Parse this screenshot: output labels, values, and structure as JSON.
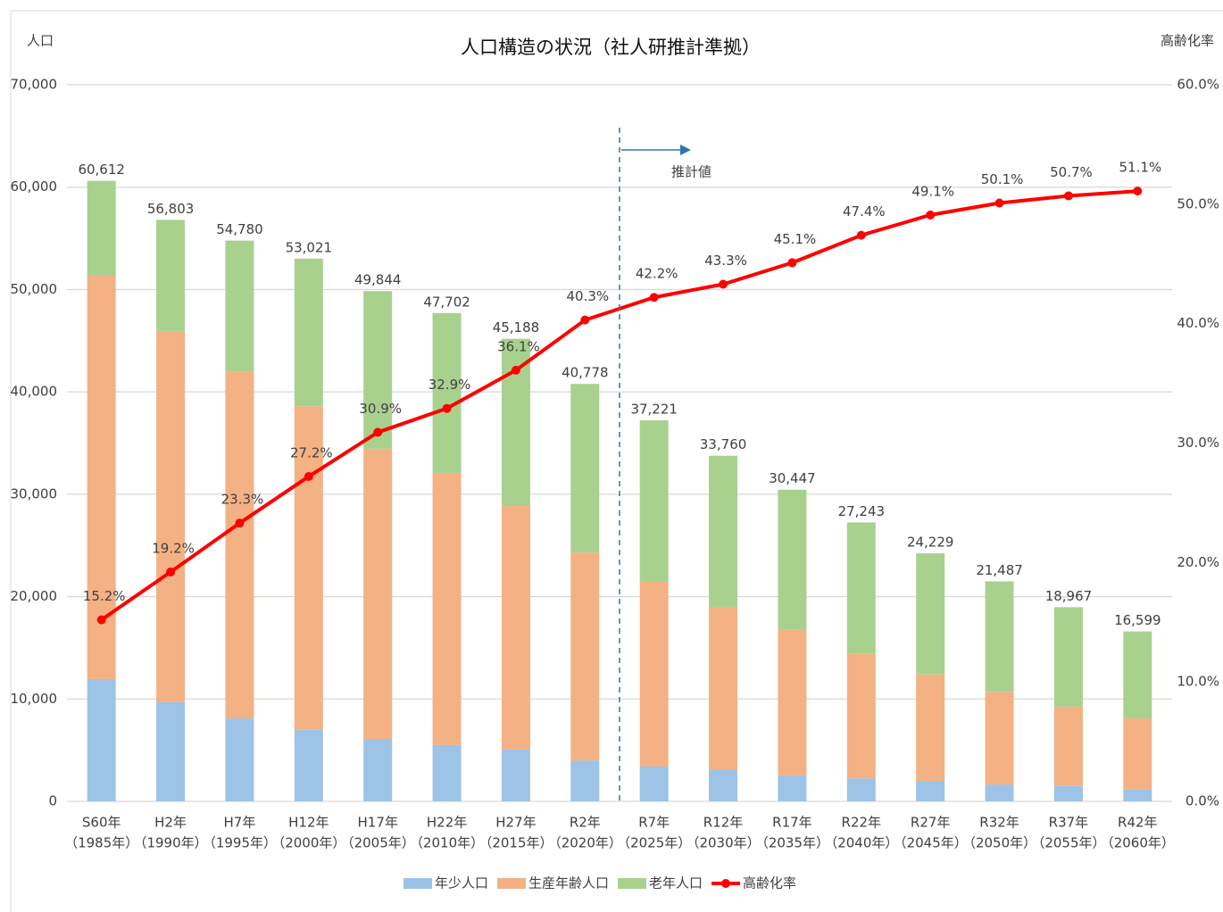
{
  "chart_data": {
    "type": "bar",
    "title": "人口構造の状況（社人研推計準拠）",
    "y_label": "人口",
    "y2_label": "高齢化率",
    "categories": [
      [
        "S60年",
        "（1985年）"
      ],
      [
        "H2年",
        "（1990年）"
      ],
      [
        "H7年",
        "（1995年）"
      ],
      [
        "H12年",
        "（2000年）"
      ],
      [
        "H17年",
        "（2005年）"
      ],
      [
        "H22年",
        "（2010年）"
      ],
      [
        "H27年",
        "（2015年）"
      ],
      [
        "R2年",
        "（2020年）"
      ],
      [
        "R7年",
        "（2025年）"
      ],
      [
        "R12年",
        "（2030年）"
      ],
      [
        "R17年",
        "（2035年）"
      ],
      [
        "R22年",
        "（2040年）"
      ],
      [
        "R27年",
        "（2045年）"
      ],
      [
        "R32年",
        "（2050年）"
      ],
      [
        "R37年",
        "（2055年）"
      ],
      [
        "R42年",
        "（2060年）"
      ]
    ],
    "series": [
      {
        "name": "年少人口",
        "type": "bar",
        "color": "#9dc3e6",
        "values": [
          11950,
          9700,
          8100,
          7000,
          6100,
          5500,
          5050,
          4000,
          3400,
          3050,
          2550,
          2250,
          2000,
          1650,
          1500,
          1200
        ]
      },
      {
        "name": "生産年齢人口",
        "type": "bar",
        "color": "#f4b183",
        "values": [
          39400,
          36250,
          33850,
          31600,
          28350,
          26500,
          23800,
          20300,
          18050,
          15950,
          14200,
          12150,
          10400,
          9050,
          7750,
          6900
        ]
      },
      {
        "name": "老年人口",
        "type": "bar",
        "color": "#a9d18e",
        "values": [
          9262,
          10853,
          12830,
          14421,
          15394,
          15702,
          16338,
          16478,
          15771,
          14760,
          13697,
          12843,
          11829,
          10787,
          9717,
          8499
        ]
      },
      {
        "name": "高齢化率",
        "type": "line",
        "axis": "y2",
        "color": "#ff0000",
        "values": [
          15.2,
          19.2,
          23.3,
          27.2,
          30.9,
          32.9,
          36.1,
          40.3,
          42.2,
          43.3,
          45.1,
          47.4,
          49.1,
          50.1,
          50.7,
          51.1
        ],
        "value_labels": [
          "15.2%",
          "19.2%",
          "23.3%",
          "27.2%",
          "30.9%",
          "32.9%",
          "36.1%",
          "40.3%",
          "42.2%",
          "43.3%",
          "45.1%",
          "47.4%",
          "49.1%",
          "50.1%",
          "50.7%",
          "51.1%"
        ]
      }
    ],
    "totals": [
      {
        "value": 60612,
        "label": "60,612"
      },
      {
        "value": 56803,
        "label": "56,803"
      },
      {
        "value": 54780,
        "label": "54,780"
      },
      {
        "value": 53021,
        "label": "53,021"
      },
      {
        "value": 49844,
        "label": "49,844"
      },
      {
        "value": 47702,
        "label": "47,702"
      },
      {
        "value": 45188,
        "label": "45,188"
      },
      {
        "value": 40778,
        "label": "40,778"
      },
      {
        "value": 37221,
        "label": "37,221"
      },
      {
        "value": 33760,
        "label": "33,760"
      },
      {
        "value": 30447,
        "label": "30,447"
      },
      {
        "value": 27243,
        "label": "27,243"
      },
      {
        "value": 24229,
        "label": "24,229"
      },
      {
        "value": 21487,
        "label": "21,487"
      },
      {
        "value": 18967,
        "label": "18,967"
      },
      {
        "value": 16599,
        "label": "16,599"
      }
    ],
    "ylim": [
      0,
      70000
    ],
    "yticks": [
      0,
      {
        "value": 10000,
        "label": "10,000"
      },
      {
        "value": 20000,
        "label": "20,000"
      },
      {
        "value": 30000,
        "label": "30,000"
      },
      {
        "value": 40000,
        "label": "40,000"
      },
      {
        "value": 50000,
        "label": "50,000"
      },
      {
        "value": 60000,
        "label": "60,000"
      },
      {
        "value": 70000,
        "label": "70,000"
      }
    ],
    "y2lim": [
      0,
      60
    ],
    "y2ticks": [
      {
        "value": 0,
        "label": "0.0%"
      },
      {
        "value": 10,
        "label": "10.0%"
      },
      {
        "value": 20,
        "label": "20.0%"
      },
      {
        "value": 30,
        "label": "30.0%"
      },
      {
        "value": 40,
        "label": "40.0%"
      },
      {
        "value": 50,
        "label": "50.0%"
      },
      {
        "value": 60,
        "label": "60.0%"
      }
    ],
    "grid": true,
    "legend": "bottom",
    "annotation": {
      "text": "推計値"
    }
  }
}
